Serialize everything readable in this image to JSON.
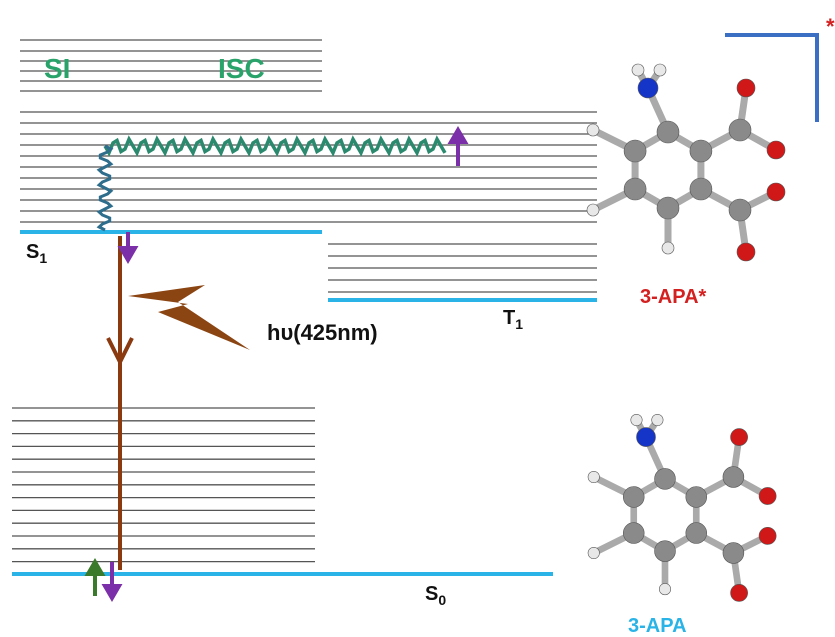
{
  "labels": {
    "si": "SI",
    "isc": "ISC",
    "emission": "hυ(425nm)"
  },
  "levels": {
    "s1": {
      "symbol": "S",
      "subscript": "1"
    },
    "t1": {
      "symbol": "T",
      "subscript": "1"
    },
    "s0": {
      "symbol": "S",
      "subscript": "0"
    }
  },
  "molecules": {
    "excited": "3-APA*",
    "ground": "3-APA"
  },
  "corner_mark": "*"
}
